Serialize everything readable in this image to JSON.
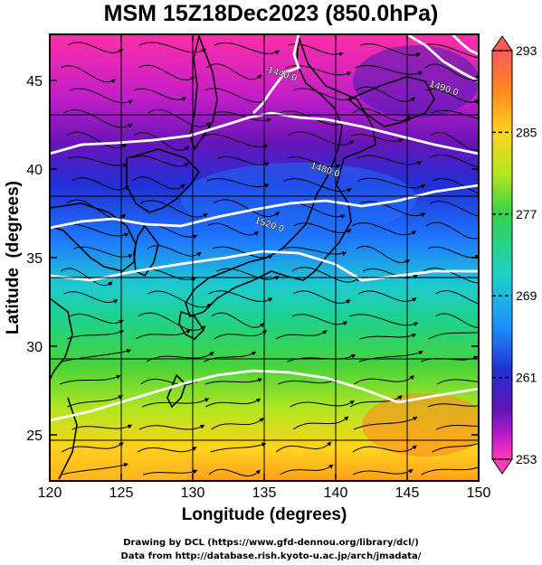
{
  "title": "MSM 15Z18Dec2023 (850.0hPa)",
  "footer": {
    "line1": "Drawing by DCL (https://www.gfd-dennou.org/library/dcl/)",
    "line2": "Data from http://database.rish.kyoto-u.ac.jp/arch/jmadata/"
  },
  "axes": {
    "xlabel": "Longitude (degrees)",
    "ylabel": "Latitude  (degrees)",
    "xticks": [
      "120",
      "125",
      "130",
      "135",
      "140",
      "145",
      "150"
    ],
    "yticks": [
      "25",
      "30",
      "35",
      "40",
      "45"
    ],
    "xlim": [
      120,
      150
    ],
    "ylim": [
      22.4,
      47.6
    ]
  },
  "colorbar": {
    "labels": [
      "293",
      "285",
      "277",
      "269",
      "261",
      "253"
    ],
    "colors": [
      "#ff5a5a",
      "#ff8a1e",
      "#ffd21e",
      "#b4e61e",
      "#32d24a",
      "#1ed2c8",
      "#1e8cff",
      "#1e32d2",
      "#6414b4",
      "#c81ec8",
      "#ff3cb4"
    ]
  },
  "contours": [
    {
      "label": "1440.0",
      "lon": 136.2,
      "lat": 45.2
    },
    {
      "label": "1490.0",
      "lon": 147.5,
      "lat": 44.4
    },
    {
      "label": "1480.0",
      "lon": 139.2,
      "lat": 39.8
    },
    {
      "label": "1520.0",
      "lon": 135.3,
      "lat": 36.7
    }
  ]
}
